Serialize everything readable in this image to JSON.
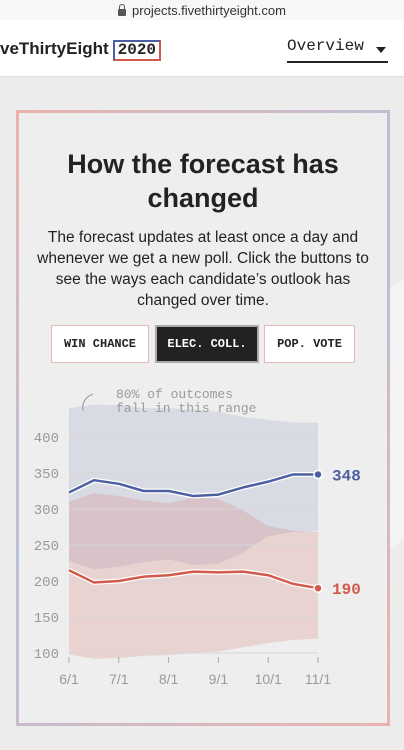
{
  "browser": {
    "url": "projects.fivethirtyeight.com"
  },
  "header": {
    "logo_text": "veThirtyEight",
    "logo_year": "2020",
    "nav_label": "Overview"
  },
  "card": {
    "title": "How the forecast has changed",
    "description": "The forecast updates at least once a day and whenever we get a new poll. Click the buttons to see the ways each candidate’s outlook has changed over time.",
    "buttons": [
      {
        "label": "WIN CHANCE",
        "active": false
      },
      {
        "label": "ELEC. COLL.",
        "active": true
      },
      {
        "label": "POP. VOTE",
        "active": false
      }
    ]
  },
  "chart_data": {
    "type": "line",
    "x": [
      "6/1",
      "6/15",
      "7/1",
      "7/15",
      "8/1",
      "8/15",
      "9/1",
      "9/15",
      "10/1",
      "10/15",
      "11/1"
    ],
    "xticks": [
      "6/1",
      "7/1",
      "8/1",
      "9/1",
      "10/1",
      "11/1"
    ],
    "yticks": [
      100,
      150,
      200,
      250,
      300,
      350,
      400
    ],
    "ylim": [
      90,
      445
    ],
    "annotation_lines": [
      "80% of outcomes",
      "fall in this range"
    ],
    "series": [
      {
        "color": "#4d5fa3",
        "values": [
          323,
          340,
          335,
          325,
          325,
          318,
          320,
          330,
          338,
          348,
          348
        ],
        "band_low": [
          228,
          216,
          220,
          226,
          230,
          222,
          224,
          240,
          262,
          268,
          270
        ],
        "band_high": [
          440,
          445,
          444,
          440,
          440,
          438,
          435,
          428,
          424,
          420,
          420
        ],
        "end_label": "348"
      },
      {
        "color": "#d25a4d",
        "values": [
          215,
          198,
          200,
          206,
          208,
          213,
          212,
          213,
          208,
          196,
          190
        ],
        "band_low": [
          98,
          92,
          93,
          96,
          97,
          100,
          102,
          108,
          114,
          118,
          120
        ],
        "band_high": [
          310,
          322,
          318,
          312,
          308,
          316,
          314,
          298,
          276,
          270,
          268
        ],
        "end_label": "190"
      }
    ],
    "colors": {
      "dem": "#4d5fa3",
      "rep": "#d25a4d"
    }
  }
}
